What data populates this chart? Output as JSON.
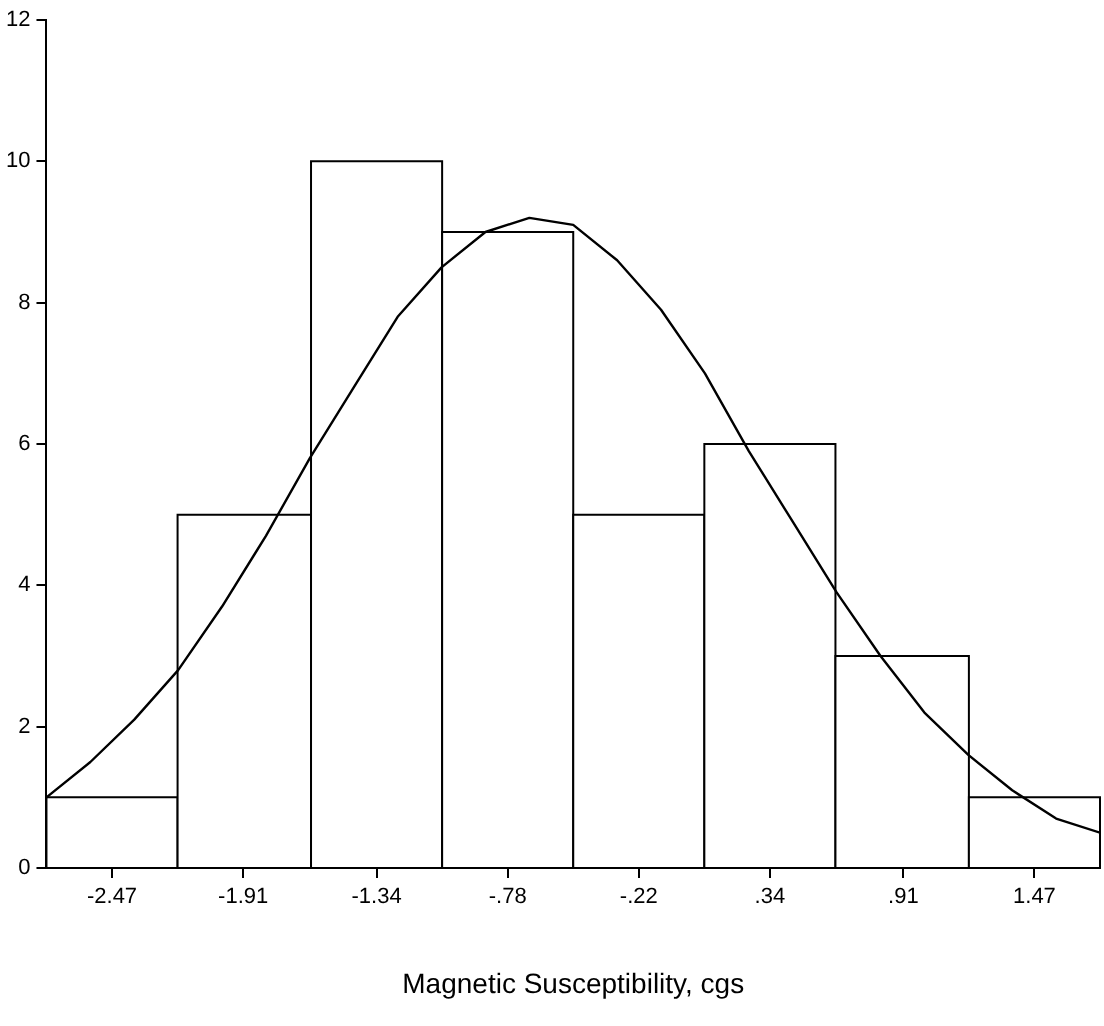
{
  "chart_data": {
    "type": "histogram",
    "xlabel": "Magnetic Susceptibility, cgs",
    "bins": [
      -2.75,
      -2.19,
      -1.62,
      -1.06,
      -0.5,
      0.06,
      0.62,
      1.19,
      1.75
    ],
    "values": [
      1,
      5,
      10,
      9,
      5,
      6,
      3,
      1
    ],
    "color": "#ffffff",
    "series": [
      {
        "type": "line",
        "color": "#000000",
        "x": [
          -2.75,
          -2.5625,
          -2.375,
          -2.1875,
          -2.0,
          -1.8125,
          -1.625,
          -1.4375,
          -1.25,
          -1.0625,
          -0.875,
          -0.6875,
          -0.5,
          -0.3125,
          -0.125,
          0.0625,
          0.25,
          0.4375,
          0.625,
          0.8125,
          1.0,
          1.1875,
          1.375,
          1.5625,
          1.75
        ],
        "values": [
          1.0,
          1.5,
          2.1,
          2.8,
          3.7,
          4.7,
          5.8,
          6.8,
          7.8,
          8.5,
          9.0,
          9.2,
          9.1,
          8.6,
          7.9,
          7.0,
          5.9,
          4.9,
          3.9,
          3.0,
          2.2,
          1.6,
          1.1,
          0.7,
          0.5
        ]
      }
    ],
    "marker": "none",
    "grid": false,
    "legend": false,
    "xlim": [
      -2.75,
      1.75
    ],
    "xticks": [
      {
        "value": -2.47,
        "label": "-2.47"
      },
      {
        "value": -1.91,
        "label": "-1.91"
      },
      {
        "value": -1.34,
        "label": "-1.34"
      },
      {
        "value": -0.78,
        "label": "-.78"
      },
      {
        "value": -0.22,
        "label": "-.22"
      },
      {
        "value": 0.34,
        "label": ".34"
      },
      {
        "value": 0.91,
        "label": ".91"
      },
      {
        "value": 1.47,
        "label": "1.47"
      }
    ],
    "ylim": [
      0,
      12
    ],
    "yticks": [
      0,
      2,
      4,
      6,
      8,
      10,
      12
    ]
  }
}
